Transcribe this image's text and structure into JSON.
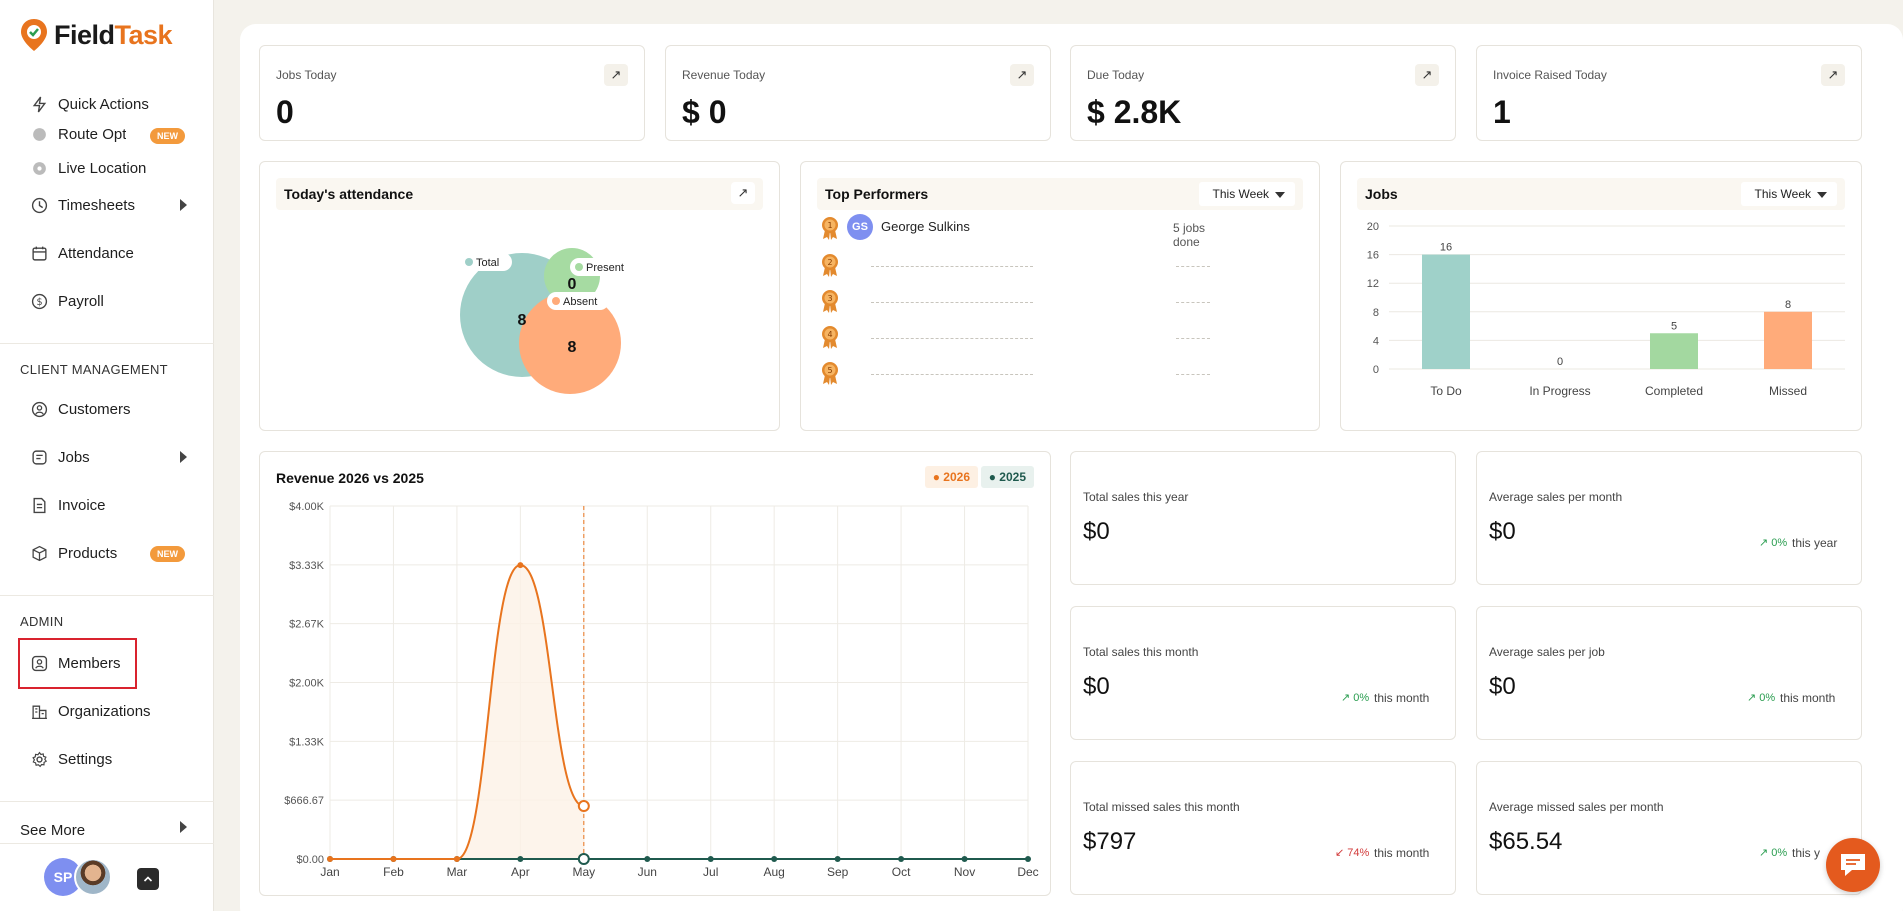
{
  "app": {
    "name_part1": "Field",
    "name_part2": "Task"
  },
  "sidebar": {
    "items_top": [
      {
        "label": "Quick Actions",
        "icon": "lightning-icon"
      },
      {
        "label": "Route Opt",
        "icon": "route-icon",
        "badge": "NEW"
      },
      {
        "label": "Live Location",
        "icon": "location-icon"
      },
      {
        "label": "Timesheets",
        "icon": "clock-icon",
        "has_submenu": true
      },
      {
        "label": "Attendance",
        "icon": "calendar-icon"
      },
      {
        "label": "Payroll",
        "icon": "payroll-icon"
      }
    ],
    "client_section_label": "CLIENT MANAGEMENT",
    "client_items": [
      {
        "label": "Customers",
        "icon": "customer-icon"
      },
      {
        "label": "Jobs",
        "icon": "jobs-icon",
        "has_submenu": true
      },
      {
        "label": "Invoice",
        "icon": "invoice-icon"
      },
      {
        "label": "Products",
        "icon": "box-icon",
        "badge": "NEW"
      }
    ],
    "admin_section_label": "ADMIN",
    "admin_items": [
      {
        "label": "Members",
        "icon": "member-icon"
      },
      {
        "label": "Organizations",
        "icon": "organization-icon"
      },
      {
        "label": "Settings",
        "icon": "gear-icon"
      }
    ],
    "see_more": "See More",
    "user_initials": "SP"
  },
  "stats": [
    {
      "title": "Jobs Today",
      "value": "0"
    },
    {
      "title": "Revenue Today",
      "value": "$ 0"
    },
    {
      "title": "Due Today",
      "value": "$ 2.8K"
    },
    {
      "title": "Invoice Raised Today",
      "value": "1"
    }
  ],
  "attendance": {
    "title": "Today's attendance",
    "total_label": "Total",
    "total_value": "8",
    "present_label": "Present",
    "present_value": "0",
    "absent_label": "Absent",
    "absent_value": "8"
  },
  "top_performers": {
    "title": "Top Performers",
    "period": "This Week",
    "first": {
      "initials": "GS",
      "name": "George Sulkins",
      "jobs": "5 jobs done"
    },
    "ranks": [
      "1",
      "2",
      "3",
      "4",
      "5"
    ]
  },
  "jobs_chart": {
    "title": "Jobs",
    "period": "This Week",
    "colors": {
      "To Do": "#9fd1c9",
      "In Progress": "#9fd1c9",
      "Completed": "#a3d8a0",
      "Missed": "#ffab7a"
    }
  },
  "revenue": {
    "title": "Revenue 2026 vs 2025",
    "legend_2026": "2026",
    "legend_2025": "2025",
    "color_2026": "#e8741e",
    "color_2025": "#1f5a4e"
  },
  "metrics": [
    {
      "title": "Total sales this year",
      "value": "$0"
    },
    {
      "title": "Average sales per month",
      "value": "$0",
      "pct": "0%",
      "period": "this year"
    },
    {
      "title": "Total sales this month",
      "value": "$0",
      "pct": "0%",
      "period": "this month"
    },
    {
      "title": "Average sales per job",
      "value": "$0",
      "pct": "0%",
      "period": "this month"
    },
    {
      "title": "Total missed sales this month",
      "value": "$797",
      "pct": "74%",
      "period": "this month",
      "trend": "down"
    },
    {
      "title": "Average missed sales per month",
      "value": "$65.54",
      "pct": "0%",
      "period": "this y"
    }
  ],
  "chart_data": [
    {
      "type": "bar",
      "title": "Jobs",
      "categories": [
        "To Do",
        "In Progress",
        "Completed",
        "Missed"
      ],
      "values": [
        16,
        0,
        5,
        8
      ],
      "ylim": [
        0,
        20
      ],
      "yticks": [
        "0",
        "4",
        "8",
        "12",
        "16",
        "20"
      ],
      "grid": true
    },
    {
      "type": "line",
      "title": "Revenue 2026 vs 2025",
      "categories": [
        "Jan",
        "Feb",
        "Mar",
        "Apr",
        "May",
        "Jun",
        "Jul",
        "Aug",
        "Sep",
        "Oct",
        "Nov",
        "Dec"
      ],
      "series": [
        {
          "name": "2026",
          "values": [
            0,
            0,
            0,
            3330,
            600,
            null,
            null,
            null,
            null,
            null,
            null,
            null
          ]
        },
        {
          "name": "2025",
          "values": [
            0,
            0,
            0,
            0,
            0,
            0,
            0,
            0,
            0,
            0,
            0,
            0
          ]
        }
      ],
      "ylim": [
        0,
        4000
      ],
      "yticks": [
        "$0.00",
        "$666.67",
        "$1.33K",
        "$2.00K",
        "$2.67K",
        "$3.33K",
        "$4.00K"
      ],
      "legend": "top-right",
      "grid": true
    }
  ]
}
